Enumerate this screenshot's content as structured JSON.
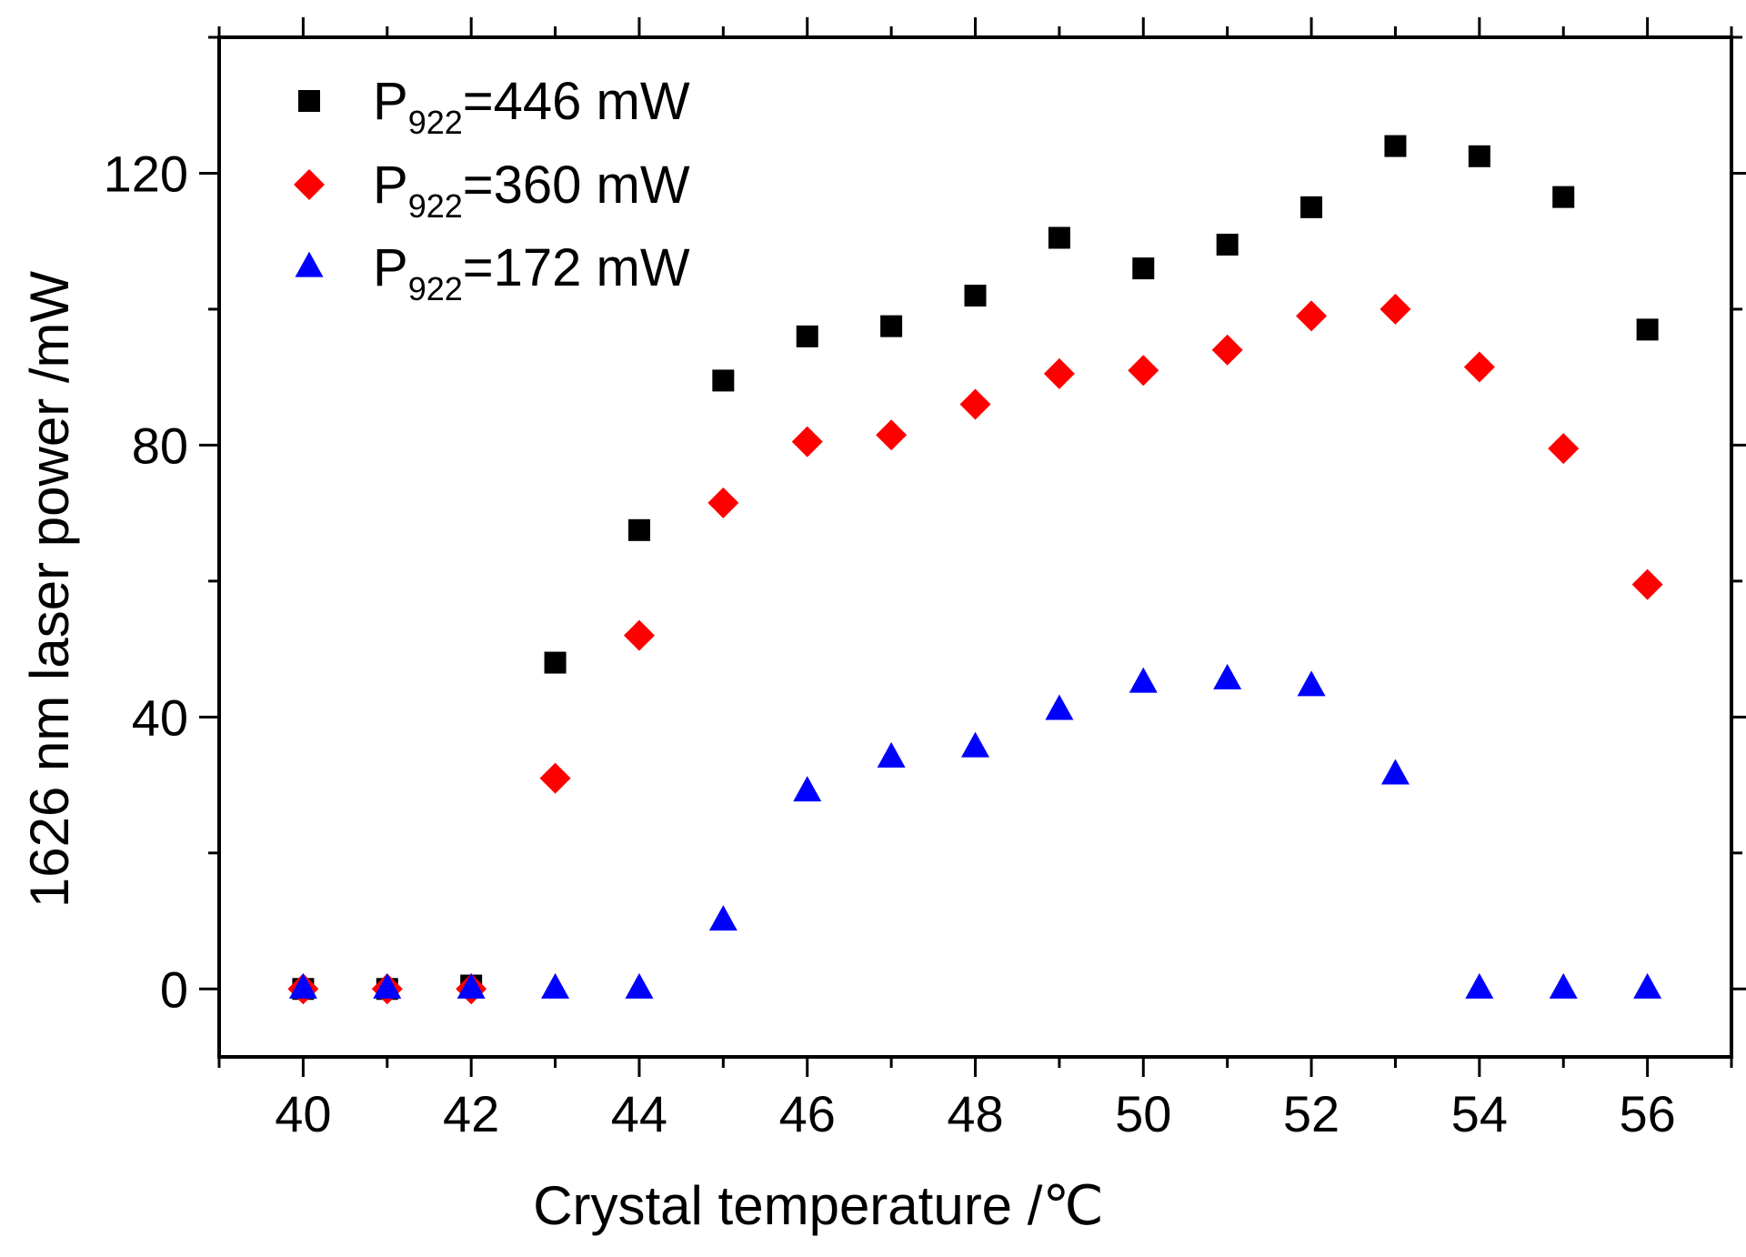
{
  "chart_data": {
    "type": "scatter",
    "title": "",
    "xlabel": "Crystal temperature /℃",
    "ylabel": "1626 nm laser power /mW",
    "xlim": [
      39,
      57
    ],
    "ylim": [
      -10,
      140
    ],
    "xticks": [
      40,
      42,
      44,
      46,
      48,
      50,
      52,
      54,
      56
    ],
    "yticks": [
      0,
      40,
      80,
      120
    ],
    "grid": false,
    "legend_position": "top-left",
    "x": [
      40,
      41,
      42,
      43,
      44,
      45,
      46,
      47,
      48,
      49,
      50,
      51,
      52,
      53,
      54,
      55,
      56
    ],
    "series": [
      {
        "name": "P922=446 mW",
        "legend_main": "P",
        "legend_sub": "922",
        "legend_rest": "=446 mW",
        "marker": "square",
        "color": "#000000",
        "values": [
          0,
          0,
          0.5,
          48,
          67.5,
          89.5,
          96,
          97.5,
          102,
          110.5,
          106,
          109.5,
          115,
          124,
          122.5,
          116.5,
          97
        ]
      },
      {
        "name": "P922=360 mW",
        "legend_main": "P",
        "legend_sub": "922",
        "legend_rest": "=360 mW",
        "marker": "diamond",
        "color": "#ff0000",
        "values": [
          0,
          0,
          0,
          31,
          52,
          71.5,
          80.5,
          81.5,
          86,
          90.5,
          91,
          94,
          99,
          100,
          91.5,
          79.5,
          59.5
        ]
      },
      {
        "name": "P922=172 mW",
        "legend_main": "P",
        "legend_sub": "922",
        "legend_rest": "=172 mW",
        "marker": "triangle",
        "color": "#0000ff",
        "values": [
          0,
          0,
          0,
          0,
          0,
          10,
          29,
          34,
          35.5,
          41,
          45,
          45.5,
          44.5,
          31.5,
          0,
          0,
          0
        ]
      }
    ]
  }
}
